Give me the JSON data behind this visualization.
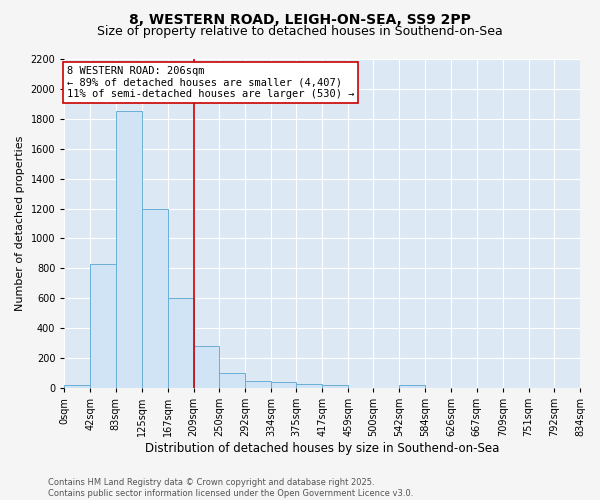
{
  "title1": "8, WESTERN ROAD, LEIGH-ON-SEA, SS9 2PP",
  "title2": "Size of property relative to detached houses in Southend-on-Sea",
  "xlabel": "Distribution of detached houses by size in Southend-on-Sea",
  "ylabel": "Number of detached properties",
  "bins": [
    0,
    42,
    83,
    125,
    167,
    209,
    250,
    292,
    334,
    375,
    417,
    459,
    500,
    542,
    584,
    626,
    667,
    709,
    751,
    792,
    834
  ],
  "counts": [
    20,
    830,
    1850,
    1200,
    600,
    280,
    100,
    50,
    40,
    25,
    20,
    0,
    0,
    20,
    0,
    0,
    0,
    0,
    0,
    0
  ],
  "bar_color": "#d0e4f5",
  "bar_edgecolor": "#6aaed6",
  "vline_x": 209,
  "vline_color": "#cc0000",
  "annotation_text": "8 WESTERN ROAD: 206sqm\n← 89% of detached houses are smaller (4,407)\n11% of semi-detached houses are larger (530) →",
  "annotation_box_color": "#cc0000",
  "ylim": [
    0,
    2200
  ],
  "yticks": [
    0,
    200,
    400,
    600,
    800,
    1000,
    1200,
    1400,
    1600,
    1800,
    2000,
    2200
  ],
  "background_color": "#dce9f5",
  "fig_color": "#f5f5f5",
  "grid_color": "#ffffff",
  "footer_text": "Contains HM Land Registry data © Crown copyright and database right 2025.\nContains public sector information licensed under the Open Government Licence v3.0.",
  "title1_fontsize": 10,
  "title2_fontsize": 9,
  "xlabel_fontsize": 8.5,
  "ylabel_fontsize": 8,
  "tick_fontsize": 7,
  "annotation_fontsize": 7.5,
  "footer_fontsize": 6
}
